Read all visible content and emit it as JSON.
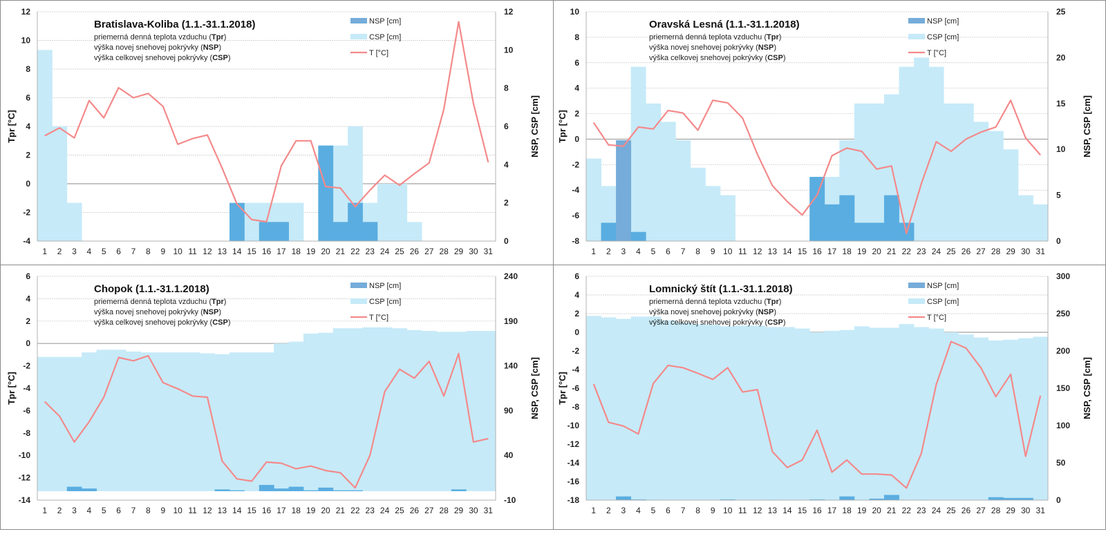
{
  "common": {
    "subtitle_lines": [
      {
        "text": "priemerná denná teplota vzduchu (",
        "bold": "Tpr",
        "end": ")"
      },
      {
        "text": "výška novej snehovej pokrývky (",
        "bold": "NSP",
        "end": ")"
      },
      {
        "text": "výška celkovej snehovej pokrývky (",
        "bold": "CSP",
        "end": ")"
      }
    ],
    "legend": {
      "nsp": "NSP [cm]",
      "csp": "CSP [cm]",
      "t": "T [°C]"
    },
    "colors": {
      "nsp": "#5aade0",
      "nsp_overlap": "#75acd9",
      "csp": "#c6eaf8",
      "t": "#f4898a",
      "grid": "#c8c8c8"
    }
  },
  "chart_data": [
    {
      "type": "bar+line",
      "title": "Bratislava-Koliba (1.1.-31.1.2018)",
      "xlabel": "",
      "ylabel": "Tpr [°C]",
      "y2label": "NSP, CSP [cm]",
      "categories": [
        "1",
        "2",
        "3",
        "4",
        "5",
        "6",
        "7",
        "8",
        "9",
        "10",
        "11",
        "12",
        "13",
        "14",
        "15",
        "16",
        "17",
        "18",
        "19",
        "20",
        "21",
        "22",
        "23",
        "24",
        "25",
        "26",
        "27",
        "28",
        "29",
        "30",
        "31"
      ],
      "ylim": [
        -4,
        12
      ],
      "yticks": [
        -4,
        -2,
        0,
        2,
        4,
        6,
        8,
        10,
        12
      ],
      "y2lim": [
        0,
        12
      ],
      "y2ticks": [
        0,
        2,
        4,
        6,
        8,
        10,
        12
      ],
      "legend_position": "top-center",
      "series": [
        {
          "name": "CSP [cm]",
          "axis": "right",
          "type": "bar",
          "values": [
            10,
            6,
            2,
            0,
            0,
            0,
            0,
            0,
            0,
            0,
            0,
            0,
            0,
            2,
            2,
            2,
            2,
            2,
            0,
            5,
            5,
            6,
            2,
            3,
            3,
            1,
            0,
            0,
            0,
            0,
            0
          ]
        },
        {
          "name": "NSP [cm]",
          "axis": "right",
          "type": "bar",
          "values": [
            0,
            0,
            0,
            0,
            0,
            0,
            0,
            0,
            0,
            0,
            0,
            0,
            0,
            2,
            0,
            1,
            1,
            0,
            0,
            5,
            1,
            2,
            1,
            0,
            0,
            0,
            0,
            0,
            0,
            0,
            0
          ]
        },
        {
          "name": "T [°C]",
          "axis": "left",
          "type": "line",
          "values": [
            3.35,
            3.9,
            3.2,
            5.8,
            4.6,
            6.7,
            6.0,
            6.3,
            5.4,
            2.75,
            3.15,
            3.4,
            1.1,
            -1.4,
            -2.5,
            -2.65,
            1.25,
            3.0,
            3.0,
            -0.2,
            -0.3,
            -1.6,
            -0.45,
            0.6,
            -0.1,
            0.7,
            1.45,
            5.2,
            11.3,
            5.6,
            1.5
          ]
        }
      ]
    },
    {
      "type": "bar+line",
      "title": "Oravská Lesná (1.1.-31.1.2018)",
      "xlabel": "",
      "ylabel": "Tpr [°C]",
      "y2label": "NSP, CSP [cm]",
      "categories": [
        "1",
        "2",
        "3",
        "4",
        "5",
        "6",
        "7",
        "8",
        "9",
        "10",
        "11",
        "12",
        "13",
        "14",
        "15",
        "16",
        "17",
        "18",
        "19",
        "20",
        "21",
        "22",
        "23",
        "24",
        "25",
        "26",
        "27",
        "28",
        "29",
        "30",
        "31"
      ],
      "ylim": [
        -8,
        10
      ],
      "yticks": [
        -8,
        -6,
        -4,
        -2,
        0,
        2,
        4,
        6,
        8,
        10
      ],
      "y2lim": [
        0,
        25
      ],
      "y2ticks": [
        0,
        5,
        10,
        15,
        20,
        25
      ],
      "legend_position": "top-center",
      "series": [
        {
          "name": "CSP [cm]",
          "axis": "right",
          "type": "bar",
          "values": [
            9,
            6,
            8,
            19,
            15,
            13,
            11,
            8,
            6,
            5,
            0,
            0,
            0,
            0,
            0,
            7,
            7,
            11,
            15,
            15,
            16,
            19,
            20,
            19,
            15,
            15,
            13,
            12,
            10,
            5,
            4
          ]
        },
        {
          "name": "NSP [cm]",
          "axis": "right",
          "type": "bar",
          "values": [
            0,
            2,
            11,
            1,
            0,
            0,
            0,
            0,
            0,
            0,
            0,
            0,
            0,
            0,
            0,
            7,
            4,
            5,
            2,
            2,
            5,
            2,
            0,
            0,
            0,
            0,
            0,
            0,
            0,
            0,
            0
          ]
        },
        {
          "name": "T [°C]",
          "axis": "left",
          "type": "line",
          "values": [
            1.3,
            -0.45,
            -0.55,
            0.95,
            0.8,
            2.25,
            2.05,
            0.7,
            3.05,
            2.85,
            1.65,
            -1.2,
            -3.65,
            -4.9,
            -5.95,
            -4.4,
            -1.3,
            -0.7,
            -0.95,
            -2.35,
            -2.1,
            -7.4,
            -3.5,
            -0.2,
            -0.95,
            0.0,
            0.55,
            0.95,
            3.05,
            0.1,
            -1.25
          ]
        }
      ]
    },
    {
      "type": "bar+line",
      "title": "Chopok (1.1.-31.1.2018)",
      "xlabel": "",
      "ylabel": "Tpr [°C]",
      "y2label": "NSP, CSP [cm]",
      "categories": [
        "1",
        "2",
        "3",
        "4",
        "5",
        "6",
        "7",
        "8",
        "9",
        "10",
        "11",
        "12",
        "13",
        "14",
        "15",
        "16",
        "17",
        "18",
        "19",
        "20",
        "21",
        "22",
        "23",
        "24",
        "25",
        "26",
        "27",
        "28",
        "29",
        "30",
        "31"
      ],
      "ylim": [
        -14,
        6
      ],
      "yticks": [
        -14,
        -12,
        -10,
        -8,
        -6,
        -4,
        -2,
        0,
        2,
        4,
        6
      ],
      "y2lim": [
        -10,
        240
      ],
      "y2ticks": [
        -10,
        40,
        90,
        140,
        190
      ],
      "y2ticks_top": 240,
      "legend_position": "top-center",
      "series": [
        {
          "name": "CSP [cm]",
          "axis": "right",
          "type": "bar",
          "values": [
            150,
            150,
            150,
            155,
            158,
            158,
            156,
            155,
            155,
            155,
            155,
            154,
            153,
            155,
            155,
            155,
            165,
            167,
            176,
            177,
            182,
            182,
            183,
            183,
            182,
            180,
            179,
            178,
            178,
            179,
            179
          ]
        },
        {
          "name": "NSP [cm]",
          "axis": "right",
          "type": "bar",
          "values": [
            0,
            0,
            5,
            3,
            0,
            0,
            0,
            0,
            0,
            0,
            0,
            0,
            2,
            1,
            0,
            7,
            3,
            5,
            1,
            4,
            1,
            1,
            0,
            0,
            0,
            0,
            0,
            0,
            2,
            0,
            0
          ]
        },
        {
          "name": "T [°C]",
          "axis": "left",
          "type": "line",
          "values": [
            -5.2,
            -6.5,
            -8.8,
            -7.0,
            -4.8,
            -1.25,
            -1.55,
            -1.1,
            -3.5,
            -4.05,
            -4.7,
            -4.8,
            -10.5,
            -12.1,
            -12.3,
            -10.6,
            -10.7,
            -11.2,
            -10.95,
            -11.35,
            -11.55,
            -12.9,
            -10.0,
            -4.3,
            -2.3,
            -3.1,
            -1.6,
            -4.7,
            -0.9,
            -8.8,
            -8.5
          ]
        }
      ]
    },
    {
      "type": "bar+line",
      "title": "Lomnický štít (1.1.-31.1.2018)",
      "xlabel": "",
      "ylabel": "Tpr [°C]",
      "y2label": "NSP, CSP [cm]",
      "categories": [
        "1",
        "2",
        "3",
        "4",
        "5",
        "6",
        "7",
        "8",
        "9",
        "10",
        "11",
        "12",
        "13",
        "14",
        "15",
        "16",
        "17",
        "18",
        "19",
        "20",
        "21",
        "22",
        "23",
        "24",
        "25",
        "26",
        "27",
        "28",
        "29",
        "30",
        "31"
      ],
      "ylim": [
        -18,
        6
      ],
      "yticks": [
        -18,
        -16,
        -14,
        -12,
        -10,
        -8,
        -6,
        -4,
        -2,
        0,
        2,
        4,
        6
      ],
      "y2lim": [
        0,
        300
      ],
      "y2ticks": [
        0,
        50,
        100,
        150,
        200,
        250,
        300
      ],
      "legend_position": "top-center",
      "series": [
        {
          "name": "CSP [cm]",
          "axis": "right",
          "type": "bar",
          "values": [
            247,
            245,
            243,
            246,
            246,
            241,
            238,
            236,
            235,
            233,
            234,
            234,
            232,
            232,
            230,
            225,
            227,
            228,
            233,
            231,
            231,
            236,
            232,
            230,
            225,
            222,
            218,
            214,
            215,
            217,
            219
          ]
        },
        {
          "name": "NSP [cm]",
          "axis": "right",
          "type": "bar",
          "values": [
            0,
            0,
            5,
            1,
            0.5,
            0,
            0,
            0,
            0,
            1,
            0,
            0,
            0.5,
            0,
            0,
            1,
            0.5,
            5,
            0.5,
            2,
            7,
            0,
            0.5,
            0,
            0,
            0,
            0,
            4,
            3,
            3,
            0
          ]
        },
        {
          "name": "T [°C]",
          "axis": "left",
          "type": "line",
          "values": [
            -5.55,
            -9.65,
            -10.05,
            -10.9,
            -5.5,
            -3.55,
            -3.8,
            -4.4,
            -5.05,
            -3.8,
            -6.4,
            -6.15,
            -12.8,
            -14.5,
            -13.7,
            -10.5,
            -15.0,
            -13.7,
            -15.2,
            -15.2,
            -15.3,
            -16.7,
            -13.0,
            -5.6,
            -1.0,
            -1.7,
            -3.8,
            -6.9,
            -4.5,
            -13.3,
            -6.8
          ]
        }
      ]
    }
  ]
}
